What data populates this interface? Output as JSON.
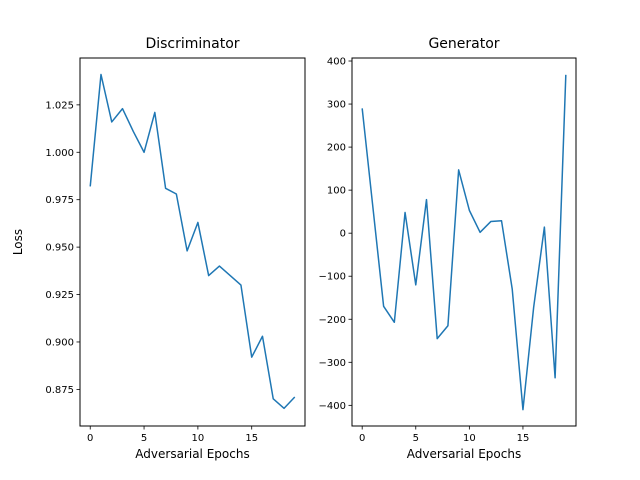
{
  "chart_data": [
    {
      "type": "line",
      "title": "Discriminator",
      "xlabel": "Adversarial Epochs",
      "ylabel": "Loss",
      "grid": false,
      "xlim": [
        -0.95,
        19.95
      ],
      "ylim": [
        0.8557,
        1.0497
      ],
      "xticks": [
        0,
        5,
        10,
        15
      ],
      "xtick_labels": [
        "0",
        "5",
        "10",
        "15"
      ],
      "yticks": [
        0.875,
        0.9,
        0.925,
        0.95,
        0.975,
        1.0,
        1.025
      ],
      "ytick_labels": [
        "0.875",
        "0.900",
        "0.925",
        "0.950",
        "0.975",
        "1.000",
        "1.025"
      ],
      "color": "#1f77b4",
      "x": [
        0,
        1,
        2,
        3,
        4,
        5,
        6,
        7,
        8,
        9,
        10,
        11,
        12,
        13,
        14,
        15,
        16,
        17,
        18,
        19
      ],
      "y": [
        0.982,
        1.041,
        1.016,
        1.023,
        1.011,
        1.0,
        1.021,
        0.981,
        0.978,
        0.948,
        0.963,
        0.935,
        0.94,
        0.935,
        0.93,
        0.892,
        0.903,
        0.87,
        0.865,
        0.871
      ]
    },
    {
      "type": "line",
      "title": "Generator",
      "xlabel": "Adversarial Epochs",
      "ylabel": "",
      "grid": false,
      "xlim": [
        -0.95,
        19.95
      ],
      "ylim": [
        -448,
        407
      ],
      "xticks": [
        0,
        5,
        10,
        15
      ],
      "xtick_labels": [
        "0",
        "5",
        "10",
        "15"
      ],
      "yticks": [
        -400,
        -300,
        -200,
        -100,
        0,
        100,
        200,
        300,
        400
      ],
      "ytick_labels": [
        "−400",
        "−300",
        "−200",
        "−100",
        "0",
        "100",
        "200",
        "300",
        "400"
      ],
      "color": "#1f77b4",
      "x": [
        0,
        1,
        2,
        3,
        4,
        5,
        6,
        7,
        8,
        9,
        10,
        11,
        12,
        13,
        14,
        15,
        16,
        17,
        18,
        19
      ],
      "y": [
        290,
        60,
        -170,
        -207,
        48,
        -120,
        78,
        -245,
        -215,
        147,
        53,
        2,
        27,
        29,
        -130,
        -410,
        -172,
        14,
        -336,
        368
      ]
    }
  ]
}
